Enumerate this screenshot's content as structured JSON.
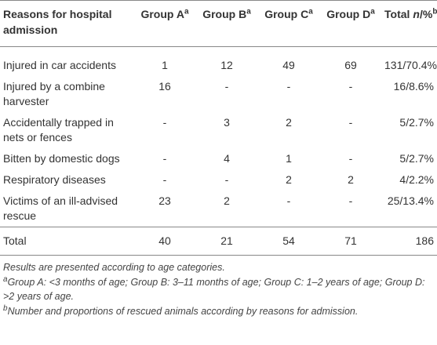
{
  "table": {
    "header": [
      {
        "label": "Reasons for hospital admission"
      },
      {
        "label": "Group A",
        "sup": "a"
      },
      {
        "label": "Group B",
        "sup": "a"
      },
      {
        "label": "Group C",
        "sup": "a"
      },
      {
        "label": "Group D",
        "sup": "a"
      },
      {
        "label": "Total",
        "italic": "n",
        "rest": "/%",
        "sup": "b"
      }
    ],
    "rows": [
      [
        "Injured in car accidents",
        1,
        12,
        49,
        69,
        "131/70.4%"
      ],
      [
        "Injured by a combine harvester",
        16,
        "-",
        "-",
        "-",
        "16/8.6%"
      ],
      [
        "Accidentally trapped in nets or fences",
        "-",
        3,
        2,
        "-",
        "5/2.7%"
      ],
      [
        "Bitten by domestic dogs",
        "-",
        4,
        1,
        "-",
        "5/2.7%"
      ],
      [
        "Respiratory diseases",
        "-",
        "-",
        2,
        2,
        "4/2.2%"
      ],
      [
        "Victims of an ill-advised rescue",
        23,
        2,
        "-",
        "-",
        "25/13.4%"
      ]
    ],
    "total": [
      "Total",
      40,
      21,
      54,
      71,
      186
    ]
  },
  "notes": [
    {
      "text": "Results are presented according to age categories."
    },
    {
      "sup": "a",
      "text": "Group A: <3 months of age; Group B: 3–11 months of age; Group C: 1–2 years of age; Group D: >2 years of age."
    },
    {
      "sup": "b",
      "text": "Number and proportions of rescued animals according by reasons for admission."
    }
  ]
}
